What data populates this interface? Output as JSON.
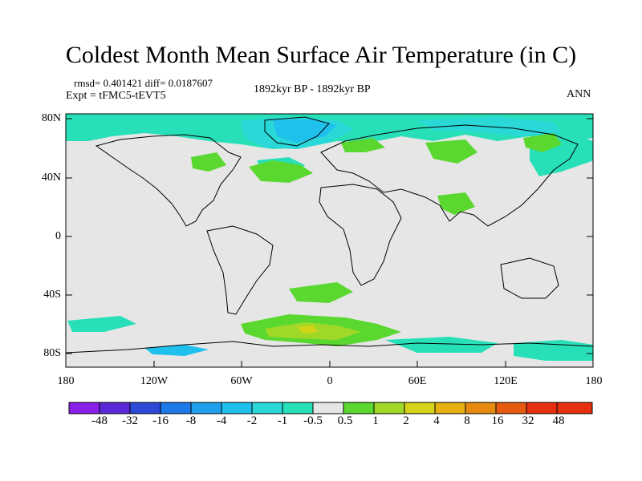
{
  "title": "Coldest Month Mean Surface Air Temperature (in C)",
  "stats": "rmsd= 0.401421 diff= 0.0187607",
  "experiment": "Expt = tFMC5-tEVT5",
  "period": "1892kyr BP - 1892kyr BP",
  "season": "ANN",
  "lat_labels": [
    "80N",
    "40N",
    "0",
    "40S",
    "80S"
  ],
  "lon_labels": [
    "180",
    "120W",
    "60W",
    "0",
    "60E",
    "120E",
    "180"
  ],
  "colorbar": {
    "labels": [
      "-48",
      "-32",
      "-16",
      "-8",
      "-4",
      "-2",
      "-1",
      "-0.5",
      "0.5",
      "1",
      "2",
      "4",
      "8",
      "16",
      "32",
      "48"
    ],
    "colors": [
      "#8a1fe8",
      "#5a28d8",
      "#2e48d8",
      "#1e7ae8",
      "#1ea0ec",
      "#20c0ec",
      "#2ad8d8",
      "#28e0b8",
      "#e6e6e6",
      "#5ad830",
      "#a0d828",
      "#d4d418",
      "#e6b010",
      "#e68a10",
      "#e65a10",
      "#e63010"
    ]
  }
}
